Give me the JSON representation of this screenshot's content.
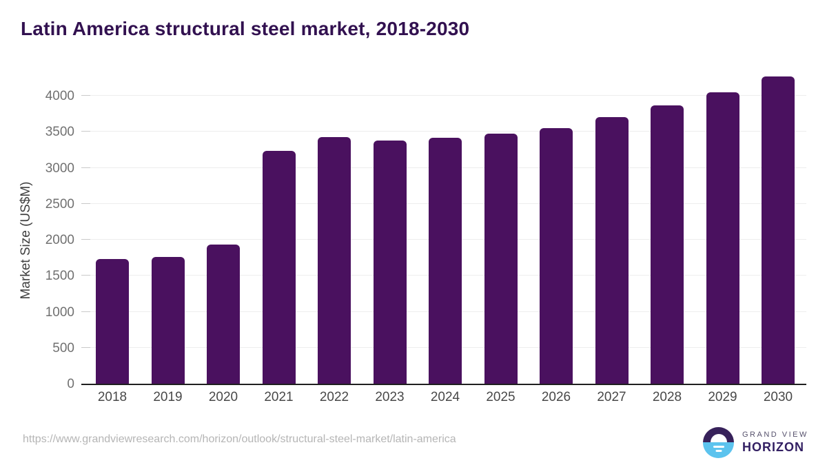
{
  "header": {
    "title": "Latin America structural steel market, 2018-2030"
  },
  "chart_data": {
    "type": "bar",
    "title": "Latin America structural steel market, 2018-2030",
    "categories": [
      "2018",
      "2019",
      "2020",
      "2021",
      "2022",
      "2023",
      "2024",
      "2025",
      "2026",
      "2027",
      "2028",
      "2029",
      "2030"
    ],
    "values": [
      1730,
      1760,
      1935,
      3230,
      3425,
      3380,
      3415,
      3475,
      3550,
      3700,
      3870,
      4045,
      4270
    ],
    "xlabel": "",
    "ylabel": "Market Size (US$M)",
    "ylim": [
      0,
      4400
    ],
    "yticks": [
      0,
      500,
      1000,
      1500,
      2000,
      2500,
      3000,
      3500,
      4000
    ],
    "grid": "horizontal",
    "legend": "none",
    "bar_color": "#4A115F"
  },
  "footer": {
    "source_url": "https://www.grandviewresearch.com/horizon/outlook/structural-steel-market/latin-america",
    "logo": {
      "brand_top": "GRAND VIEW",
      "brand_bottom": "HORIZON",
      "icon": "horizon-sunrise-icon",
      "icon_color_top": "#37215A",
      "icon_color_bottom": "#5CC3EE"
    }
  },
  "colors": {
    "title": "#321150",
    "bar": "#4A115F",
    "axis_line": "#1F1F1F",
    "gridline": "#EDEDED",
    "y_tick_label": "#707070",
    "x_tick_label": "#484848",
    "url_text": "#B5B5B5"
  }
}
